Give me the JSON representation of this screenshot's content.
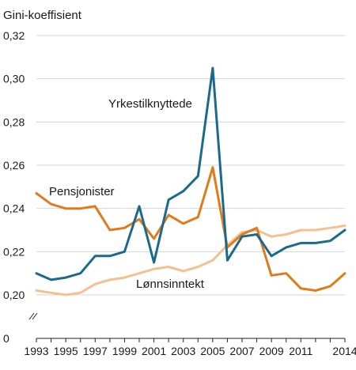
{
  "chart_data": {
    "type": "line",
    "title": "",
    "ylabel": "Gini-koeffisient",
    "xlabel": "",
    "ylim": [
      0.2,
      0.32
    ],
    "axis_break_below": 0.2,
    "y_bottom_label": "0",
    "y_ticks": [
      {
        "value": 0.2,
        "label": "0,20"
      },
      {
        "value": 0.22,
        "label": "0,22"
      },
      {
        "value": 0.24,
        "label": "0,24"
      },
      {
        "value": 0.26,
        "label": "0,26"
      },
      {
        "value": 0.28,
        "label": "0,28"
      },
      {
        "value": 0.3,
        "label": "0,30"
      },
      {
        "value": 0.32,
        "label": "0,32"
      }
    ],
    "x_ticks": [
      "1993",
      "1995",
      "1997",
      "1999",
      "2001",
      "2003",
      "2005",
      "2007",
      "2009",
      "2011",
      "2014"
    ],
    "grid": true,
    "legend": "none",
    "x": [
      1993,
      1994,
      1995,
      1996,
      1997,
      1998,
      1999,
      2000,
      2001,
      2002,
      2003,
      2004,
      2005,
      2006,
      2007,
      2008,
      2009,
      2010,
      2011,
      2012,
      2013,
      2014
    ],
    "series": [
      {
        "name": "Yrkestilknyttede",
        "color": "#1b6a8c",
        "values": [
          0.21,
          0.207,
          0.208,
          0.21,
          0.218,
          0.218,
          0.22,
          0.241,
          0.215,
          0.244,
          0.248,
          0.255,
          0.305,
          0.216,
          0.227,
          0.228,
          0.218,
          0.222,
          0.224,
          0.224,
          0.225,
          0.23
        ]
      },
      {
        "name": "Pensjonister",
        "color": "#e07b1d",
        "values": [
          0.247,
          0.242,
          0.24,
          0.24,
          0.241,
          0.23,
          0.231,
          0.235,
          0.226,
          0.237,
          0.233,
          0.236,
          0.259,
          0.222,
          0.228,
          0.231,
          0.209,
          0.21,
          0.203,
          0.202,
          0.204,
          0.21
        ]
      },
      {
        "name": "Lønnsinntekt",
        "color": "#f5c08f",
        "values": [
          0.202,
          0.201,
          0.2,
          0.201,
          0.205,
          0.207,
          0.208,
          0.21,
          0.212,
          0.213,
          0.211,
          0.213,
          0.216,
          0.223,
          0.229,
          0.23,
          0.227,
          0.228,
          0.23,
          0.23,
          0.231,
          0.232
        ]
      }
    ]
  }
}
